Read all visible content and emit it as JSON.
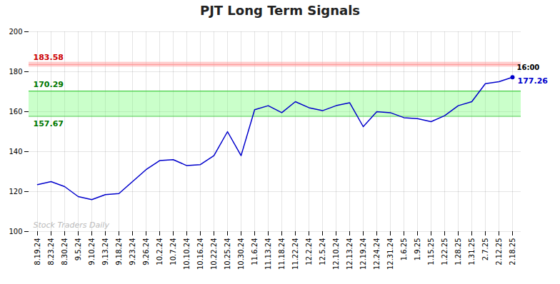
{
  "chart_data": {
    "type": "line",
    "title": "PJT Long Term Signals",
    "categories": [
      "8.19.24",
      "8.23.24",
      "8.30.24",
      "9.5.24",
      "9.10.24",
      "9.13.24",
      "9.18.24",
      "9.23.24",
      "9.26.24",
      "10.2.24",
      "10.7.24",
      "10.10.24",
      "10.16.24",
      "10.22.24",
      "10.25.24",
      "10.30.24",
      "11.6.24",
      "11.13.24",
      "11.18.24",
      "11.22.24",
      "12.2.24",
      "12.5.24",
      "12.10.24",
      "12.13.24",
      "12.19.24",
      "12.24.24",
      "12.31.24",
      "1.6.25",
      "1.9.25",
      "1.15.25",
      "1.22.25",
      "1.28.25",
      "1.31.25",
      "2.7.25",
      "2.12.25",
      "2.18.25"
    ],
    "values": [
      123.5,
      125.0,
      122.5,
      117.5,
      116.0,
      118.5,
      119.0,
      125.0,
      131.0,
      135.5,
      136.0,
      133.0,
      133.5,
      138.0,
      150.0,
      138.0,
      161.0,
      163.0,
      159.5,
      165.0,
      162.0,
      160.5,
      163.0,
      164.5,
      152.5,
      160.0,
      159.5,
      157.0,
      156.5,
      155.0,
      158.0,
      163.0,
      165.0,
      174.0,
      175.0,
      177.26
    ],
    "color": "#0000cc",
    "ylim": [
      100,
      200
    ],
    "yticks": [
      100,
      120,
      140,
      160,
      180,
      200
    ],
    "grid": true,
    "reference_line": {
      "value": 183.58,
      "band": [
        182.38,
        184.78
      ],
      "color": "#ff9999",
      "border_color": "#ff9999",
      "label": "183.58",
      "label_color": "#cc0000"
    },
    "band": {
      "lower": 157.67,
      "upper": 170.29,
      "color": "#66ff66",
      "border_color": "#44cc44",
      "lower_label": "157.67",
      "upper_label": "170.29",
      "label_color": "#007700"
    },
    "last_point": {
      "marker": "circle",
      "time_label": "16:00",
      "value_label": "177.26",
      "time_label_color": "#000000"
    },
    "watermark": "Stock Traders Daily"
  }
}
